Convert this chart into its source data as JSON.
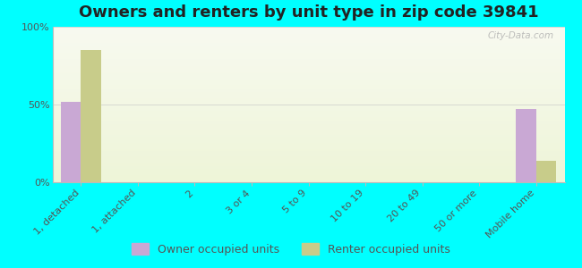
{
  "title": "Owners and renters by unit type in zip code 39841",
  "categories": [
    "1, detached",
    "1, attached",
    "2",
    "3 or 4",
    "5 to 9",
    "10 to 19",
    "20 to 49",
    "50 or more",
    "Mobile home"
  ],
  "owner_values": [
    52,
    0,
    0,
    0,
    0,
    0,
    0,
    0,
    47
  ],
  "renter_values": [
    85,
    0,
    0,
    0,
    0,
    0,
    0,
    0,
    14
  ],
  "owner_color": "#c9a8d4",
  "renter_color": "#c8cc8a",
  "background_color": "#00ffff",
  "ylabel_ticks": [
    "0%",
    "50%",
    "100%"
  ],
  "ytick_values": [
    0,
    50,
    100
  ],
  "bar_width": 0.35,
  "title_fontsize": 13,
  "tick_fontsize": 8,
  "legend_fontsize": 9,
  "ylim": [
    0,
    100
  ]
}
